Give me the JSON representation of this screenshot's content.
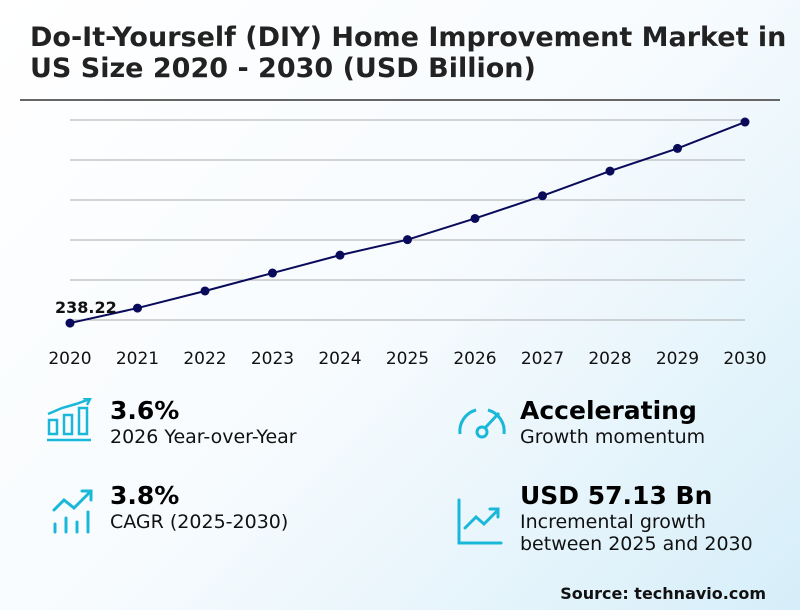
{
  "title": "Do-It-Yourself (DIY) Home Improvement Market in US Size 2020 - 2030 (USD Billion)",
  "chart_data": {
    "type": "line",
    "title": "Do-It-Yourself (DIY) Home Improvement Market in US Size 2020 - 2030 (USD Billion)",
    "x": [
      "2020",
      "2021",
      "2022",
      "2023",
      "2024",
      "2025",
      "2026",
      "2027",
      "2028",
      "2029",
      "2030"
    ],
    "series": [
      {
        "values": [
          238.22,
          245.5,
          253.8,
          262.5,
          271.2,
          278.7,
          289.0,
          300.0,
          312.0,
          323.0,
          335.8
        ],
        "color": "#0a0a5a"
      }
    ],
    "data_labels": [
      {
        "x": "2020",
        "text": "238.22"
      }
    ],
    "ylim": [
      236.8,
      336.8
    ],
    "grid": true,
    "y_tick_labels": false
  },
  "stats": [
    {
      "value": "3.6%",
      "label": "2026 Year-over-Year",
      "icon": "bar-chart-growth-icon"
    },
    {
      "value": "Accelerating",
      "label": "Growth momentum",
      "icon": "speedometer-icon"
    },
    {
      "value": "3.8%",
      "label": "CAGR (2025-2030)",
      "icon": "trend-up-bars-icon"
    },
    {
      "value": "USD 57.13 Bn",
      "label": "Incremental growth between 2025 and 2030",
      "icon": "line-chart-up-icon"
    }
  ],
  "accent_color": "#1ab8d8",
  "source": "Source: technavio.com"
}
